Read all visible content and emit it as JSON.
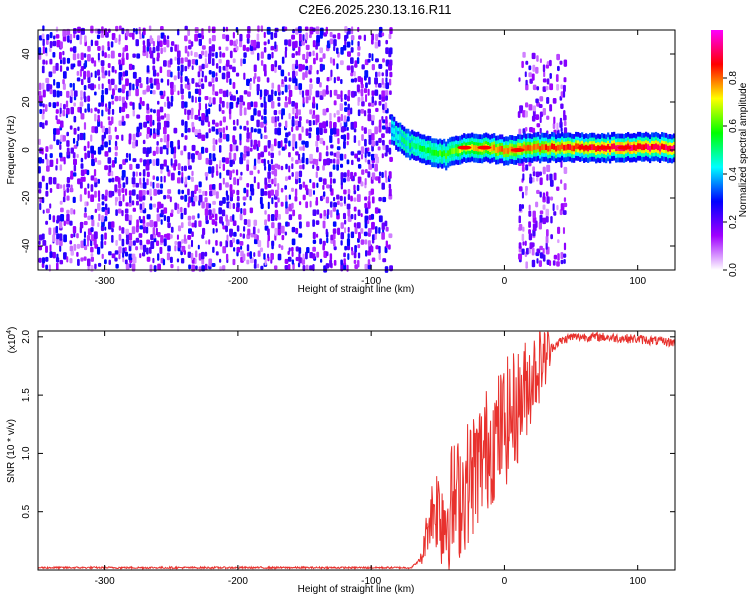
{
  "title": "C2E6.2025.230.13.16.R11",
  "chart_data": [
    {
      "type": "heatmap",
      "xlabel": "Height of straight line (km)",
      "ylabel": "Frequency (Hz)",
      "xlim": [
        -350,
        128
      ],
      "ylim": [
        -50,
        50
      ],
      "xticks": [
        -300,
        -200,
        -100,
        0,
        100
      ],
      "yticks": [
        -40,
        -20,
        0,
        20,
        40
      ],
      "colorbar": {
        "label": "Normalized spectral amplitude",
        "range": [
          0,
          1
        ],
        "ticks": [
          "0.0",
          "0.2",
          "0.4",
          "0.6",
          "0.8"
        ],
        "colors": [
          "#ffffff",
          "#a000ff",
          "#0000ff",
          "#00ffff",
          "#00ff00",
          "#ffff00",
          "#ff0000",
          "#ff00ff"
        ]
      },
      "noise_region": {
        "x": [
          -350,
          -85
        ],
        "freq": [
          -50,
          50
        ],
        "amplitude": [
          0.05,
          0.3
        ]
      },
      "burst_region": {
        "x": [
          10,
          45
        ],
        "freq": [
          -48,
          40
        ],
        "amplitude": [
          0.05,
          0.25
        ]
      },
      "signal_band": [
        {
          "x": -85,
          "freq": 8,
          "amp": 0.45
        },
        {
          "x": -75,
          "freq": 3,
          "amp": 0.5
        },
        {
          "x": -60,
          "freq": 0,
          "amp": 0.55
        },
        {
          "x": -45,
          "freq": -2,
          "amp": 0.6
        },
        {
          "x": -30,
          "freq": 1,
          "amp": 0.7
        },
        {
          "x": -15,
          "freq": 1,
          "amp": 0.75
        },
        {
          "x": 0,
          "freq": 0,
          "amp": 0.8
        },
        {
          "x": 20,
          "freq": 1,
          "amp": 0.8
        },
        {
          "x": 45,
          "freq": 1,
          "amp": 0.85
        },
        {
          "x": 80,
          "freq": 1,
          "amp": 0.9
        },
        {
          "x": 128,
          "freq": 1,
          "amp": 0.9
        }
      ]
    },
    {
      "type": "line",
      "xlabel": "Height of straight line (km)",
      "ylabel": "SNR (10 * v/v)",
      "multiplier": "(x10^4)",
      "multiplier_base": "(x10",
      "multiplier_exp": "4",
      "multiplier_close": ")",
      "xlim": [
        -350,
        128
      ],
      "ylim": [
        0,
        2.05
      ],
      "xticks": [
        -300,
        -200,
        -100,
        0,
        100
      ],
      "yticks": [
        0.5,
        1.0,
        1.5,
        2.0
      ],
      "ytick_labels": [
        "0.5",
        "1.0",
        "1.5",
        "2.0"
      ],
      "color": "#e8312d",
      "series": [
        {
          "x": [
            -350,
            -70,
            -62,
            -58,
            -55,
            -50,
            -45,
            -40,
            -35,
            -30,
            -25,
            -20,
            -15,
            -10,
            -5,
            0,
            10,
            20,
            30,
            40,
            50,
            70,
            100,
            128
          ],
          "y": [
            0.02,
            0.02,
            0.1,
            0.35,
            0.5,
            0.55,
            0.45,
            0.55,
            0.6,
            0.7,
            0.8,
            0.9,
            1.0,
            1.1,
            1.15,
            1.25,
            1.4,
            1.65,
            1.85,
            1.95,
            2.0,
            2.0,
            1.98,
            1.95
          ]
        }
      ]
    }
  ]
}
